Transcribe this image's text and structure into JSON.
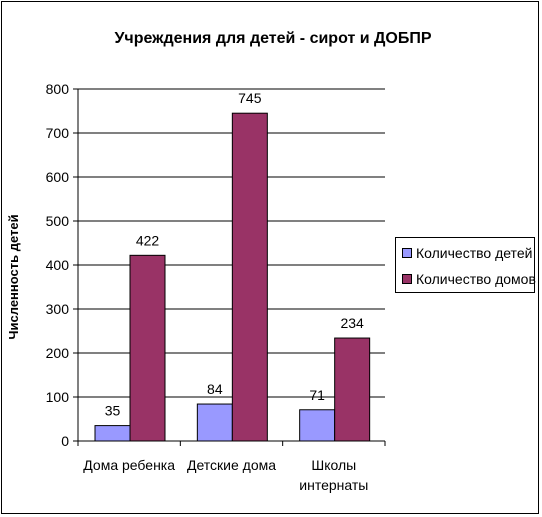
{
  "chart_data": {
    "type": "bar",
    "title": "Учреждения для детей - сирот и ДОБПР",
    "ylabel": "Численность детей",
    "xlabel": "",
    "categories": [
      "Дома ребенка",
      "Детские дома",
      "Школы интернаты"
    ],
    "category_lines": [
      [
        "Дома ребенка"
      ],
      [
        "Детские дома"
      ],
      [
        "Школы",
        "интернаты"
      ]
    ],
    "series": [
      {
        "name": "Количество детей",
        "values": [
          35,
          84,
          71
        ],
        "color": "#9999ff"
      },
      {
        "name": "Количество домов",
        "values": [
          422,
          745,
          234
        ],
        "color": "#993366"
      }
    ],
    "ylim": [
      0,
      800
    ],
    "yticks": [
      0,
      100,
      200,
      300,
      400,
      500,
      600,
      700,
      800
    ],
    "grid": true,
    "legend_position": "right"
  }
}
